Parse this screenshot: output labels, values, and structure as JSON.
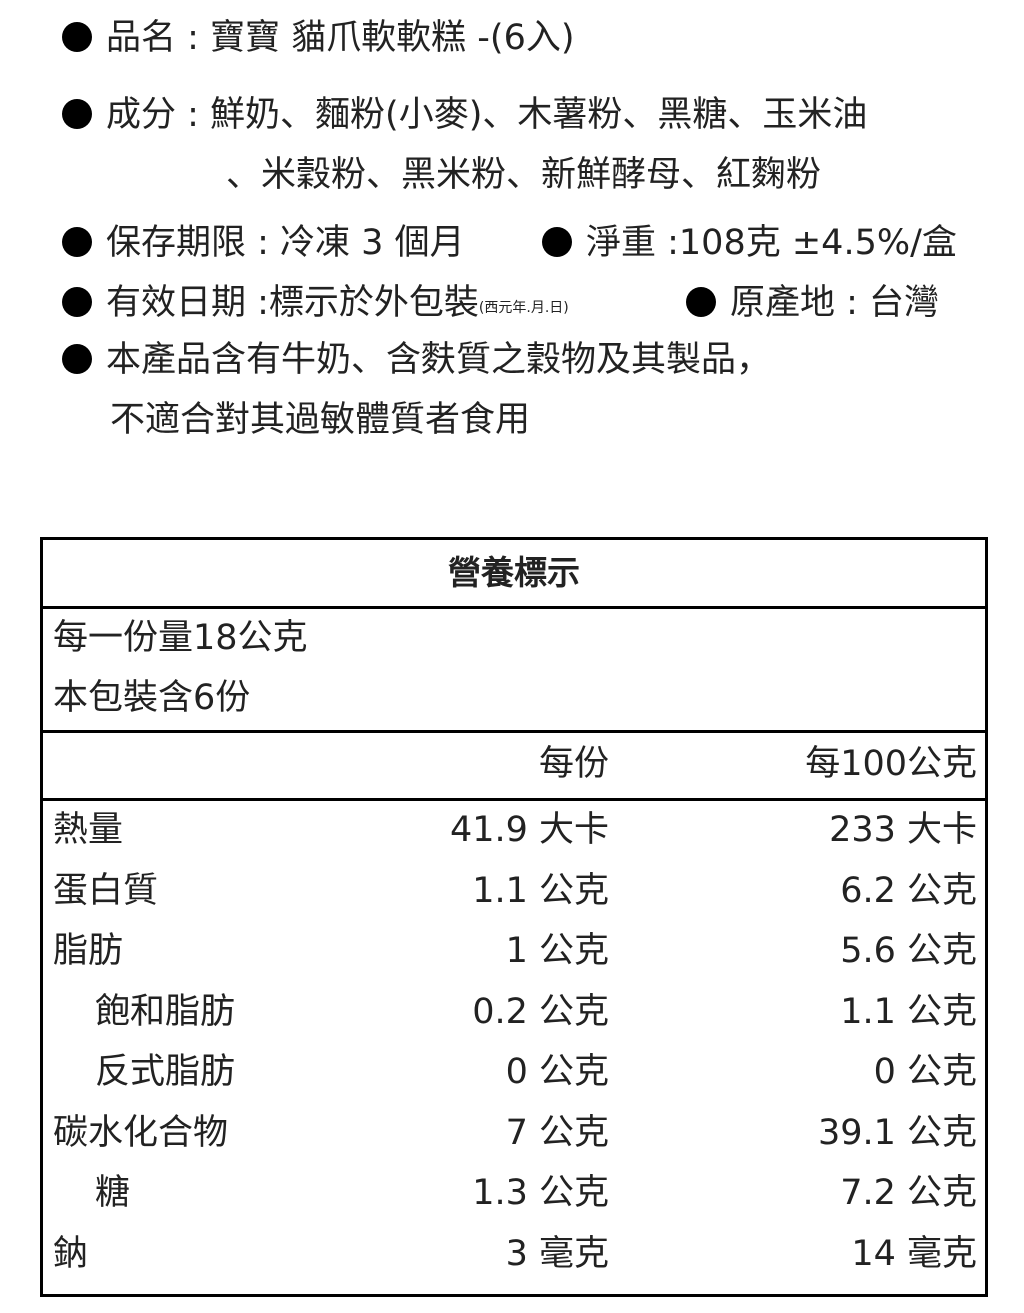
{
  "info": {
    "product_name": "品名 : 寶寶 貓爪軟軟糕 -(6入)",
    "ingredients_line1": "成分 : 鮮奶、麵粉(小麥)、木薯粉、黑糖、玉米油",
    "ingredients_line2": "、米穀粉、黑米粉、新鮮酵母、紅麴粉",
    "shelf_life": "保存期限 : 冷凍 3 個月",
    "net_weight": "淨重 :108克 ±4.5%/盒",
    "expiry": "有效日期 :標示於外包裝",
    "expiry_note": "(西元年.月.日)",
    "origin": "原產地 : 台灣",
    "allergen_line1": "本產品含有牛奶、含麩質之穀物及其製品，",
    "allergen_line2": "不適合對其過敏體質者食用"
  },
  "nutrition": {
    "title": "營養標示",
    "serving_size": "每一份量18公克",
    "servings_per_package": "本包裝含6份",
    "col_per_serving": "每份",
    "col_per_100g": "每100公克",
    "rows": [
      {
        "label": "熱量",
        "per_serving": "41.9 大卡",
        "per_100g": "233 大卡",
        "indent": false
      },
      {
        "label": "蛋白質",
        "per_serving": "1.1 公克",
        "per_100g": "6.2 公克",
        "indent": false
      },
      {
        "label": "脂肪",
        "per_serving": "1 公克",
        "per_100g": "5.6 公克",
        "indent": false
      },
      {
        "label": "飽和脂肪",
        "per_serving": "0.2 公克",
        "per_100g": "1.1 公克",
        "indent": true
      },
      {
        "label": "反式脂肪",
        "per_serving": "0 公克",
        "per_100g": "0 公克",
        "indent": true
      },
      {
        "label": "碳水化合物",
        "per_serving": "7 公克",
        "per_100g": "39.1 公克",
        "indent": false
      },
      {
        "label": "糖",
        "per_serving": "1.3 公克",
        "per_100g": "7.2 公克",
        "indent": true
      },
      {
        "label": "鈉",
        "per_serving": "3 毫克",
        "per_100g": "14 毫克",
        "indent": false
      }
    ]
  }
}
